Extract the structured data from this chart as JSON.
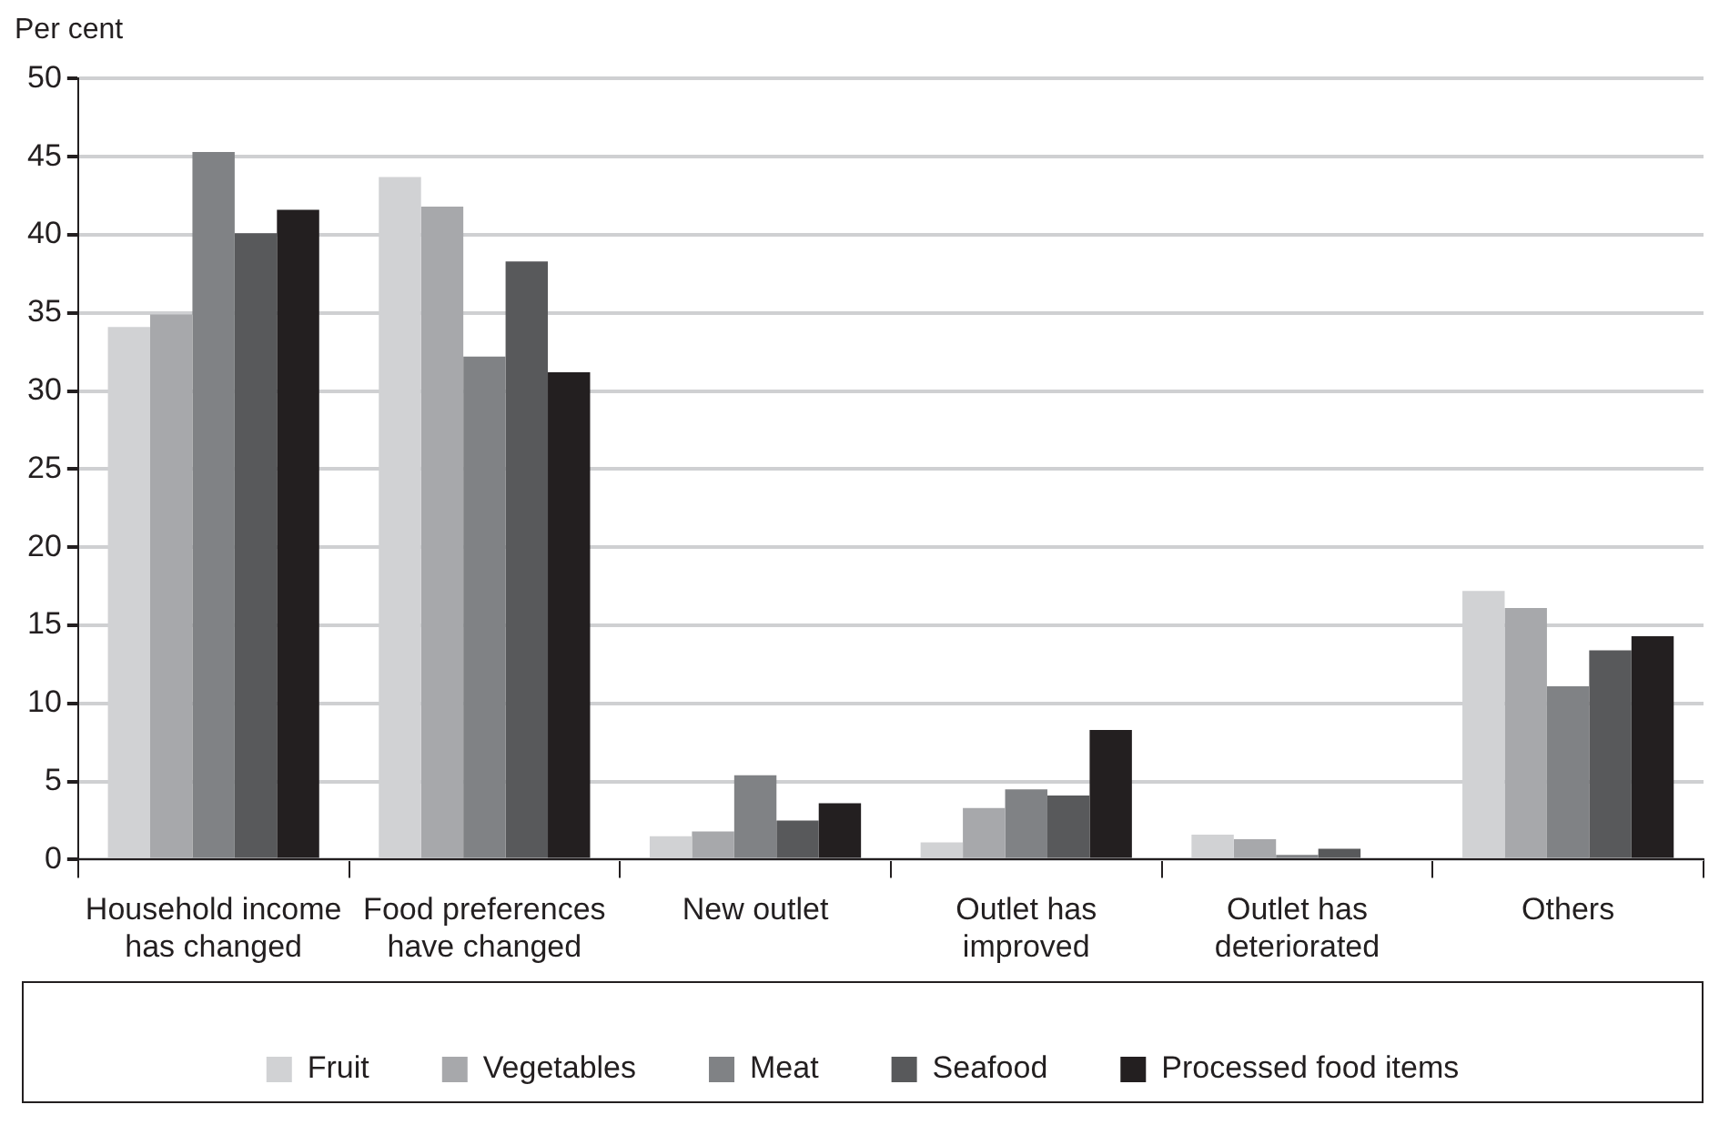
{
  "chart_data": {
    "type": "bar",
    "ylabel": "Per cent",
    "categories": [
      "Household income has changed",
      "Food preferences have changed",
      "New outlet",
      "Outlet has improved",
      "Outlet has deteriorated",
      "Others"
    ],
    "series": [
      {
        "name": "Fruit",
        "color": "#d1d2d4",
        "values": [
          34.1,
          43.7,
          1.5,
          1.1,
          1.6,
          17.2
        ]
      },
      {
        "name": "Vegetables",
        "color": "#a7a8ab",
        "values": [
          34.9,
          41.8,
          1.8,
          3.3,
          1.3,
          16.1
        ]
      },
      {
        "name": "Meat",
        "color": "#808285",
        "values": [
          45.3,
          32.2,
          5.4,
          4.5,
          0.3,
          11.1
        ]
      },
      {
        "name": "Seafood",
        "color": "#58595b",
        "values": [
          40.1,
          38.3,
          2.5,
          4.1,
          0.7,
          13.4
        ]
      },
      {
        "name": "Processed food items",
        "color": "#231f20",
        "values": [
          41.6,
          31.2,
          3.6,
          8.3,
          0,
          14.3
        ]
      }
    ],
    "ylim": [
      0,
      50
    ],
    "yticks": [
      0,
      5,
      10,
      15,
      20,
      25,
      30,
      35,
      40,
      45,
      50
    ],
    "grid": "y",
    "legend": "bottom"
  }
}
